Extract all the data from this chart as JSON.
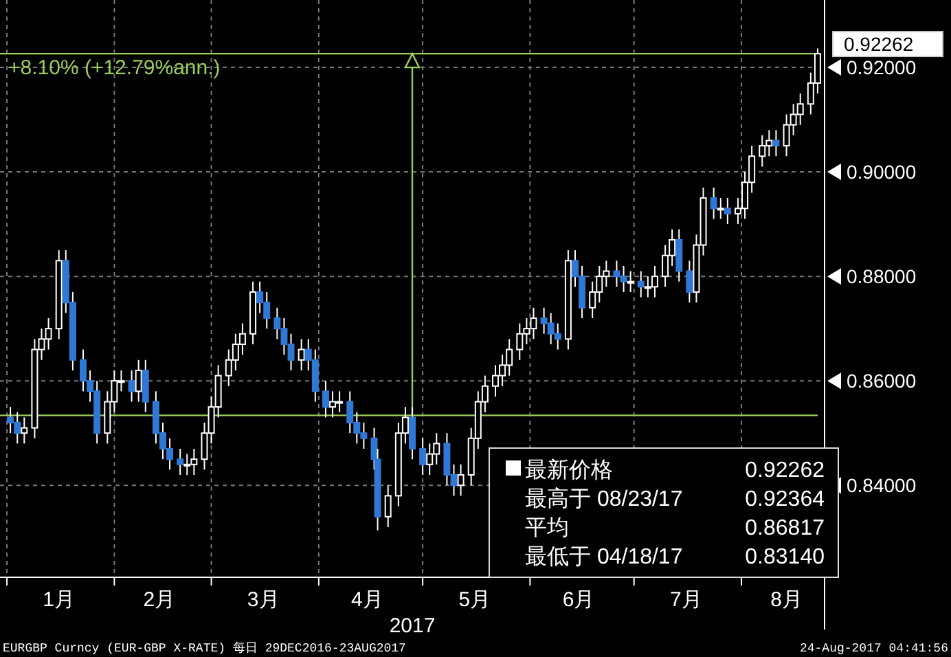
{
  "chart_data": {
    "type": "candlestick",
    "x": [
      "2017-01-02",
      "2017-01-04",
      "2017-01-06",
      "2017-01-09",
      "2017-01-11",
      "2017-01-13",
      "2017-01-16",
      "2017-01-18",
      "2017-01-20",
      "2017-01-23",
      "2017-01-25",
      "2017-01-27",
      "2017-01-30",
      "2017-02-01",
      "2017-02-03",
      "2017-02-06",
      "2017-02-08",
      "2017-02-10",
      "2017-02-13",
      "2017-02-15",
      "2017-02-17",
      "2017-02-20",
      "2017-02-22",
      "2017-02-24",
      "2017-02-27",
      "2017-03-01",
      "2017-03-03",
      "2017-03-06",
      "2017-03-08",
      "2017-03-10",
      "2017-03-13",
      "2017-03-15",
      "2017-03-17",
      "2017-03-20",
      "2017-03-22",
      "2017-03-24",
      "2017-03-27",
      "2017-03-29",
      "2017-03-31",
      "2017-04-03",
      "2017-04-05",
      "2017-04-07",
      "2017-04-10",
      "2017-04-12",
      "2017-04-14",
      "2017-04-17",
      "2017-04-18",
      "2017-04-21",
      "2017-04-24",
      "2017-04-26",
      "2017-04-28",
      "2017-05-01",
      "2017-05-03",
      "2017-05-05",
      "2017-05-08",
      "2017-05-10",
      "2017-05-12",
      "2017-05-15",
      "2017-05-17",
      "2017-05-19",
      "2017-05-22",
      "2017-05-24",
      "2017-05-26",
      "2017-05-29",
      "2017-05-31",
      "2017-06-02",
      "2017-06-05",
      "2017-06-07",
      "2017-06-09",
      "2017-06-12",
      "2017-06-14",
      "2017-06-16",
      "2017-06-19",
      "2017-06-21",
      "2017-06-23",
      "2017-06-26",
      "2017-06-28",
      "2017-06-30",
      "2017-07-03",
      "2017-07-05",
      "2017-07-07",
      "2017-07-10",
      "2017-07-12",
      "2017-07-14",
      "2017-07-17",
      "2017-07-19",
      "2017-07-21",
      "2017-07-24",
      "2017-07-26",
      "2017-07-28",
      "2017-07-31",
      "2017-08-02",
      "2017-08-04",
      "2017-08-07",
      "2017-08-09",
      "2017-08-11",
      "2017-08-14",
      "2017-08-16",
      "2017-08-18",
      "2017-08-21",
      "2017-08-23"
    ],
    "ohlc": [
      [
        0.853,
        0.855,
        0.85,
        0.852
      ],
      [
        0.852,
        0.854,
        0.848,
        0.85
      ],
      [
        0.85,
        0.853,
        0.848,
        0.851
      ],
      [
        0.851,
        0.868,
        0.849,
        0.866
      ],
      [
        0.866,
        0.87,
        0.864,
        0.868
      ],
      [
        0.868,
        0.872,
        0.866,
        0.87
      ],
      [
        0.87,
        0.885,
        0.868,
        0.883
      ],
      [
        0.883,
        0.885,
        0.873,
        0.875
      ],
      [
        0.875,
        0.877,
        0.862,
        0.864
      ],
      [
        0.864,
        0.866,
        0.858,
        0.86
      ],
      [
        0.86,
        0.862,
        0.856,
        0.858
      ],
      [
        0.858,
        0.86,
        0.848,
        0.85
      ],
      [
        0.85,
        0.858,
        0.848,
        0.856
      ],
      [
        0.856,
        0.862,
        0.854,
        0.86
      ],
      [
        0.86,
        0.862,
        0.858,
        0.86
      ],
      [
        0.86,
        0.862,
        0.856,
        0.858
      ],
      [
        0.858,
        0.864,
        0.856,
        0.862
      ],
      [
        0.862,
        0.864,
        0.854,
        0.856
      ],
      [
        0.856,
        0.858,
        0.848,
        0.85
      ],
      [
        0.85,
        0.852,
        0.845,
        0.847
      ],
      [
        0.847,
        0.849,
        0.843,
        0.845
      ],
      [
        0.845,
        0.847,
        0.842,
        0.844
      ],
      [
        0.844,
        0.846,
        0.842,
        0.844
      ],
      [
        0.844,
        0.847,
        0.842,
        0.845
      ],
      [
        0.845,
        0.852,
        0.843,
        0.85
      ],
      [
        0.85,
        0.857,
        0.848,
        0.855
      ],
      [
        0.855,
        0.863,
        0.853,
        0.861
      ],
      [
        0.861,
        0.866,
        0.859,
        0.864
      ],
      [
        0.864,
        0.869,
        0.862,
        0.867
      ],
      [
        0.867,
        0.871,
        0.865,
        0.869
      ],
      [
        0.869,
        0.879,
        0.867,
        0.877
      ],
      [
        0.877,
        0.879,
        0.873,
        0.875
      ],
      [
        0.875,
        0.877,
        0.87,
        0.872
      ],
      [
        0.872,
        0.874,
        0.868,
        0.87
      ],
      [
        0.87,
        0.872,
        0.865,
        0.867
      ],
      [
        0.867,
        0.869,
        0.862,
        0.864
      ],
      [
        0.864,
        0.868,
        0.862,
        0.866
      ],
      [
        0.866,
        0.868,
        0.862,
        0.864
      ],
      [
        0.864,
        0.866,
        0.856,
        0.858
      ],
      [
        0.858,
        0.86,
        0.853,
        0.855
      ],
      [
        0.855,
        0.858,
        0.853,
        0.856
      ],
      [
        0.856,
        0.858,
        0.854,
        0.856
      ],
      [
        0.856,
        0.858,
        0.85,
        0.852
      ],
      [
        0.852,
        0.854,
        0.848,
        0.85
      ],
      [
        0.85,
        0.852,
        0.847,
        0.849
      ],
      [
        0.849,
        0.851,
        0.843,
        0.845
      ],
      [
        0.845,
        0.847,
        0.8314,
        0.834
      ],
      [
        0.834,
        0.84,
        0.832,
        0.838
      ],
      [
        0.838,
        0.852,
        0.836,
        0.85
      ],
      [
        0.85,
        0.855,
        0.848,
        0.853
      ],
      [
        0.853,
        0.855,
        0.845,
        0.847
      ],
      [
        0.847,
        0.849,
        0.842,
        0.844
      ],
      [
        0.844,
        0.848,
        0.842,
        0.846
      ],
      [
        0.846,
        0.85,
        0.844,
        0.848
      ],
      [
        0.848,
        0.85,
        0.84,
        0.842
      ],
      [
        0.842,
        0.844,
        0.838,
        0.84
      ],
      [
        0.84,
        0.844,
        0.838,
        0.842
      ],
      [
        0.842,
        0.851,
        0.84,
        0.849
      ],
      [
        0.849,
        0.858,
        0.847,
        0.856
      ],
      [
        0.856,
        0.861,
        0.854,
        0.859
      ],
      [
        0.859,
        0.863,
        0.857,
        0.861
      ],
      [
        0.861,
        0.865,
        0.859,
        0.863
      ],
      [
        0.863,
        0.868,
        0.861,
        0.866
      ],
      [
        0.866,
        0.871,
        0.864,
        0.869
      ],
      [
        0.869,
        0.872,
        0.867,
        0.87
      ],
      [
        0.87,
        0.874,
        0.868,
        0.872
      ],
      [
        0.872,
        0.874,
        0.869,
        0.871
      ],
      [
        0.871,
        0.873,
        0.867,
        0.869
      ],
      [
        0.869,
        0.871,
        0.866,
        0.868
      ],
      [
        0.868,
        0.885,
        0.866,
        0.883
      ],
      [
        0.883,
        0.885,
        0.878,
        0.88
      ],
      [
        0.88,
        0.882,
        0.872,
        0.874
      ],
      [
        0.874,
        0.879,
        0.872,
        0.877
      ],
      [
        0.877,
        0.882,
        0.875,
        0.88
      ],
      [
        0.88,
        0.883,
        0.878,
        0.881
      ],
      [
        0.881,
        0.883,
        0.878,
        0.88
      ],
      [
        0.88,
        0.882,
        0.877,
        0.879
      ],
      [
        0.879,
        0.881,
        0.877,
        0.879
      ],
      [
        0.879,
        0.881,
        0.876,
        0.878
      ],
      [
        0.878,
        0.88,
        0.876,
        0.878
      ],
      [
        0.878,
        0.882,
        0.876,
        0.88
      ],
      [
        0.88,
        0.886,
        0.878,
        0.884
      ],
      [
        0.884,
        0.889,
        0.882,
        0.887
      ],
      [
        0.887,
        0.889,
        0.879,
        0.881
      ],
      [
        0.881,
        0.883,
        0.875,
        0.877
      ],
      [
        0.877,
        0.888,
        0.875,
        0.886
      ],
      [
        0.886,
        0.897,
        0.884,
        0.895
      ],
      [
        0.895,
        0.897,
        0.891,
        0.893
      ],
      [
        0.893,
        0.895,
        0.891,
        0.893
      ],
      [
        0.893,
        0.895,
        0.89,
        0.892
      ],
      [
        0.892,
        0.895,
        0.89,
        0.893
      ],
      [
        0.893,
        0.9,
        0.891,
        0.898
      ],
      [
        0.898,
        0.905,
        0.896,
        0.903
      ],
      [
        0.903,
        0.907,
        0.901,
        0.905
      ],
      [
        0.905,
        0.908,
        0.903,
        0.906
      ],
      [
        0.906,
        0.908,
        0.903,
        0.905
      ],
      [
        0.905,
        0.911,
        0.903,
        0.909
      ],
      [
        0.909,
        0.913,
        0.907,
        0.911
      ],
      [
        0.911,
        0.915,
        0.909,
        0.913
      ],
      [
        0.913,
        0.919,
        0.911,
        0.917
      ],
      [
        0.917,
        0.92364,
        0.915,
        0.92262
      ]
    ],
    "xlim": [
      "2016-12-30",
      "2017-08-25"
    ],
    "xticks": [
      {
        "value": "2017-01-01",
        "label": null
      },
      {
        "value": "2017-01-16",
        "label": "1月"
      },
      {
        "value": "2017-02-01",
        "label": null
      },
      {
        "value": "2017-02-14",
        "label": "2月"
      },
      {
        "value": "2017-03-01",
        "label": null
      },
      {
        "value": "2017-03-16",
        "label": "3月"
      },
      {
        "value": "2017-04-01",
        "label": null
      },
      {
        "value": "2017-04-15",
        "label": "4月"
      },
      {
        "value": "2017-05-01",
        "label": null
      },
      {
        "value": "2017-05-16",
        "label": "5月"
      },
      {
        "value": "2017-06-01",
        "label": null
      },
      {
        "value": "2017-06-15",
        "label": "6月"
      },
      {
        "value": "2017-07-01",
        "label": null
      },
      {
        "value": "2017-07-16",
        "label": "7月"
      },
      {
        "value": "2017-08-01",
        "label": null
      },
      {
        "value": "2017-08-14",
        "label": "8月"
      }
    ],
    "ylim": [
      0.8224,
      0.9329
    ],
    "yticks": [
      {
        "value": 0.84,
        "label": "0.84000"
      },
      {
        "value": 0.86,
        "label": "0.86000"
      },
      {
        "value": 0.88,
        "label": "0.88000"
      },
      {
        "value": 0.9,
        "label": "0.90000"
      },
      {
        "value": 0.92,
        "label": "0.92000"
      }
    ],
    "xlabel": "2017",
    "grid": true,
    "ref_lines": [
      {
        "axis": "y",
        "value": 0.8534,
        "color": "#9acd5a"
      },
      {
        "axis": "y",
        "value": 0.92262,
        "label": "0.92262",
        "color": "#9acd5a"
      },
      {
        "axis": "x",
        "value": "2017-04-28",
        "color": "#9acd5a"
      }
    ],
    "annotations": [
      "+8.10% (+12.79%ann.)",
      "最新价格",
      "0.92262",
      "最高于 08/23/17",
      "0.92364",
      "平均",
      "0.86817",
      "最低于 04/18/17",
      "0.83140",
      "EURGBP Curncy (EUR-GBP X-RATE)  每日 29DEC2016-23AUG2017",
      "24-Aug-2017 04:41:56"
    ]
  }
}
